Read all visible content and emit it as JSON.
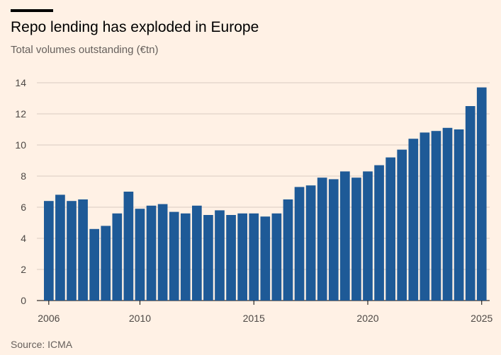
{
  "header": {
    "title": "Repo lending has exploded in Europe",
    "subtitle": "Total volumes outstanding (€tn)"
  },
  "footer": {
    "source": "Source: ICMA"
  },
  "colors": {
    "background": "#FFF1E5",
    "bar": "#1E5A97",
    "gridline": "#D9CCC1",
    "text": "#33302E"
  },
  "chart_data": {
    "type": "bar",
    "title": "Repo lending has exploded in Europe",
    "subtitle": "Total volumes outstanding (€tn)",
    "xlabel": "",
    "ylabel": "",
    "ylim": [
      0,
      14
    ],
    "yticks": [
      0,
      2,
      4,
      6,
      8,
      10,
      12,
      14
    ],
    "xticks": [
      "2006",
      "2010",
      "2015",
      "2020",
      "2025"
    ],
    "grid": true,
    "legend": "none",
    "x": [
      2006,
      2006.5,
      2007,
      2007.5,
      2008,
      2008.5,
      2009,
      2009.5,
      2010,
      2010.5,
      2011,
      2011.5,
      2012,
      2012.5,
      2013,
      2013.5,
      2014,
      2014.5,
      2015,
      2015.5,
      2016,
      2016.5,
      2017,
      2017.5,
      2018,
      2018.5,
      2019,
      2019.5,
      2020,
      2020.5,
      2021,
      2021.5,
      2022,
      2022.5,
      2023,
      2023.5,
      2024,
      2024.5,
      2025
    ],
    "values": [
      6.4,
      6.8,
      6.4,
      6.5,
      4.6,
      4.8,
      5.6,
      7.0,
      5.9,
      6.1,
      6.2,
      5.7,
      5.6,
      6.1,
      5.5,
      5.8,
      5.5,
      5.6,
      5.6,
      5.4,
      5.6,
      6.5,
      7.3,
      7.4,
      7.9,
      7.8,
      8.3,
      7.9,
      8.3,
      8.7,
      9.2,
      9.7,
      10.4,
      10.8,
      10.9,
      11.1,
      11.0,
      12.5,
      13.7
    ]
  }
}
